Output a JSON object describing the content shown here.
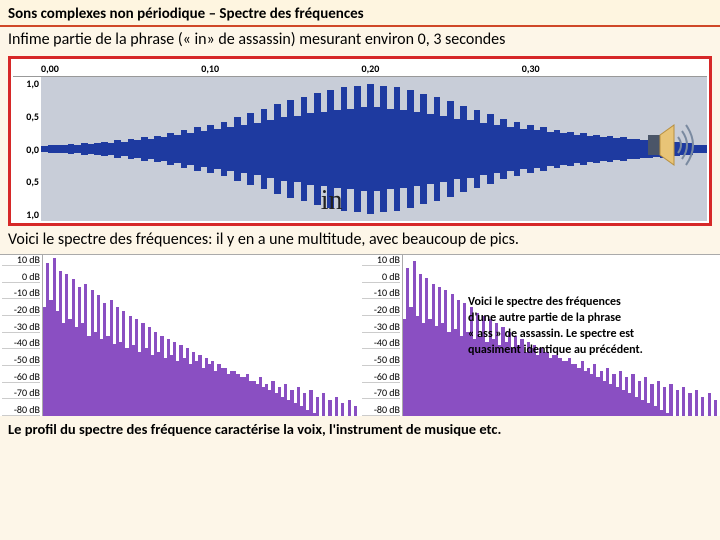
{
  "title": "Sons complexes non périodique – Spectre des fréquences",
  "intro": "Infime partie de la phrase (« in» de assassin) mesurant environ  0, 3 secondes",
  "syllable": "in",
  "caption2": "Voici le spectre des fréquences: il y en a une multitude, avec beaucoup de pics.",
  "note1": "Voici le spectre des fréquences",
  "note2": "d'une autre partie de la phrase",
  "note3": " « ass » de assassin.  Le spectre est",
  "note4": "quasiment identique au précédent.",
  "footer": "Le profil du spectre des fréquence caractérise la voix, l'instrument de musique etc.",
  "timeline": {
    "t0": "0,00",
    "t1": "0,10",
    "t2": "0,20",
    "t3": "0,30"
  },
  "yaxis": {
    "y0": "1,0",
    "y1": "0,5",
    "y2": "0,0",
    "y3": "0,5",
    "y4": "1,0"
  },
  "db": {
    "d0": "10 dB",
    "d1": "0 dB",
    "d2": "-10 dB",
    "d3": "-20 dB",
    "d4": "-30 dB",
    "d5": "-40 dB",
    "d6": "-50 dB",
    "d7": "-60 dB",
    "d8": "-70 dB",
    "d9": "-80 dB"
  },
  "colors": {
    "accent": "#d04828",
    "border": "#d62828",
    "wave": "#1e3aa0",
    "wavebg": "#c8cdd8",
    "spec": "#8a4fc2",
    "bg": "#fdf6e8",
    "speaker_cone": "#e8c477",
    "speaker_box": "#4a5568"
  },
  "waveform_envelope_pct": [
    4,
    5,
    6,
    5,
    7,
    6,
    8,
    7,
    9,
    10,
    8,
    12,
    10,
    14,
    12,
    16,
    14,
    18,
    16,
    22,
    19,
    26,
    22,
    30,
    25,
    34,
    28,
    38,
    30,
    44,
    34,
    50,
    36,
    56,
    40,
    62,
    44,
    68,
    46,
    72,
    50,
    78,
    52,
    82,
    54,
    86,
    56,
    88,
    58,
    90,
    58,
    88,
    56,
    86,
    54,
    82,
    52,
    76,
    48,
    72,
    46,
    66,
    42,
    60,
    40,
    54,
    36,
    48,
    34,
    42,
    30,
    38,
    28,
    34,
    26,
    30,
    24,
    26,
    22,
    24,
    20,
    22,
    18,
    20,
    16,
    18,
    15,
    16,
    14,
    14,
    12,
    13,
    11,
    12,
    10,
    10,
    8,
    8,
    6,
    5
  ],
  "spectrum1_pct": [
    68,
    95,
    72,
    98,
    65,
    90,
    58,
    88,
    60,
    85,
    55,
    80,
    58,
    82,
    50,
    78,
    52,
    75,
    48,
    70,
    50,
    72,
    45,
    68,
    46,
    65,
    42,
    62,
    44,
    60,
    40,
    58,
    42,
    55,
    38,
    52,
    40,
    50,
    36,
    48,
    38,
    46,
    34,
    44,
    36,
    42,
    32,
    40,
    34,
    38,
    30,
    36,
    32,
    34,
    28,
    32,
    30,
    30,
    26,
    28,
    28,
    26,
    24,
    24,
    26,
    22,
    22,
    20,
    24,
    18,
    20,
    16,
    22,
    14,
    18,
    12,
    20,
    10,
    16,
    8,
    18,
    6,
    14,
    4,
    16,
    2,
    12,
    0,
    14,
    0,
    10,
    0,
    12,
    0,
    8,
    0,
    10,
    0,
    6,
    0
  ],
  "spectrum2_pct": [
    60,
    92,
    68,
    96,
    62,
    88,
    58,
    86,
    60,
    82,
    56,
    80,
    58,
    78,
    52,
    76,
    54,
    72,
    50,
    70,
    52,
    68,
    48,
    64,
    50,
    62,
    46,
    60,
    48,
    58,
    44,
    55,
    46,
    52,
    42,
    50,
    44,
    48,
    40,
    46,
    42,
    44,
    38,
    42,
    40,
    40,
    36,
    38,
    38,
    36,
    34,
    34,
    36,
    32,
    32,
    30,
    34,
    28,
    30,
    26,
    32,
    24,
    28,
    22,
    30,
    20,
    26,
    18,
    28,
    16,
    24,
    14,
    26,
    12,
    22,
    10,
    24,
    8,
    20,
    6,
    22,
    4,
    18,
    2,
    20,
    0,
    16,
    0,
    18,
    0,
    14,
    0,
    16,
    0,
    12,
    0,
    14,
    0,
    10,
    0
  ]
}
